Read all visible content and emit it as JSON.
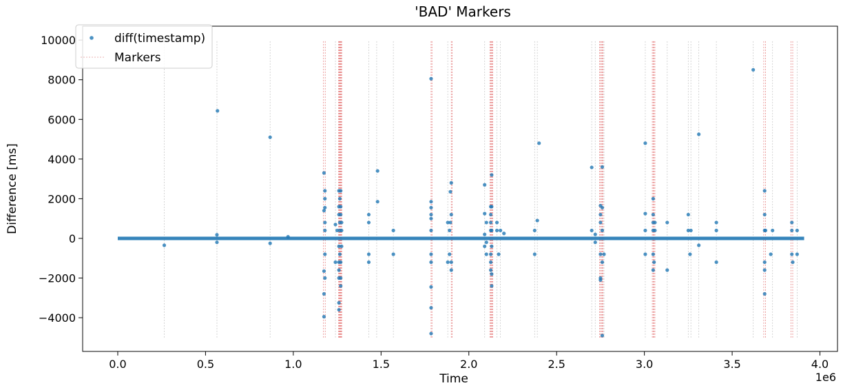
{
  "chart_data": {
    "type": "scatter",
    "title": "'BAD' Markers",
    "xlabel": "Time",
    "ylabel": "Difference [ms]",
    "x_offset_label": "1e6",
    "xlim": [
      -0.2,
      4.1
    ],
    "ylim": [
      -5700,
      10700
    ],
    "x_ticks": [
      0.0,
      0.5,
      1.0,
      1.5,
      2.0,
      2.5,
      3.0,
      3.5,
      4.0
    ],
    "x_tick_labels": [
      "0.0",
      "0.5",
      "1.0",
      "1.5",
      "2.0",
      "2.5",
      "3.0",
      "3.5",
      "4.0"
    ],
    "y_ticks": [
      -4000,
      -2000,
      0,
      2000,
      4000,
      6000,
      8000,
      10000
    ],
    "y_tick_labels": [
      "−4000",
      "−2000",
      "0",
      "2000",
      "4000",
      "6000",
      "8000",
      "10000"
    ],
    "grid": false,
    "legend": {
      "position": "top-left",
      "entries": [
        "diff(timestamp)",
        "Markers"
      ]
    },
    "colors": {
      "points": "#1f77b4",
      "markers_grey": "#c8c8c8",
      "markers_red": "#e06060"
    },
    "series": [
      {
        "name": "diff(timestamp)",
        "baseline_x_range": [
          0.0,
          3.91
        ],
        "baseline_y": 0,
        "points": [
          [
            0.265,
            -350
          ],
          [
            0.565,
            180
          ],
          [
            0.565,
            -200
          ],
          [
            0.568,
            6430
          ],
          [
            0.868,
            5100
          ],
          [
            0.868,
            -250
          ],
          [
            0.97,
            80
          ],
          [
            1.175,
            3300
          ],
          [
            1.175,
            -3950
          ],
          [
            1.175,
            1400
          ],
          [
            1.175,
            -1650
          ],
          [
            1.175,
            -2800
          ],
          [
            1.18,
            1550
          ],
          [
            1.18,
            2000
          ],
          [
            1.18,
            2400
          ],
          [
            1.18,
            800
          ],
          [
            1.18,
            400
          ],
          [
            1.18,
            -2000
          ],
          [
            1.18,
            -800
          ],
          [
            1.24,
            700
          ],
          [
            1.24,
            -1200
          ],
          [
            1.25,
            400
          ],
          [
            1.26,
            2400
          ],
          [
            1.26,
            1600
          ],
          [
            1.26,
            1200
          ],
          [
            1.26,
            -3250
          ],
          [
            1.26,
            -3600
          ],
          [
            1.26,
            -1600
          ],
          [
            1.26,
            -2000
          ],
          [
            1.26,
            -1200
          ],
          [
            1.26,
            -400
          ],
          [
            1.265,
            800
          ],
          [
            1.265,
            400
          ],
          [
            1.265,
            2000
          ],
          [
            1.265,
            -800
          ],
          [
            1.27,
            2400
          ],
          [
            1.27,
            1600
          ],
          [
            1.27,
            -2000
          ],
          [
            1.27,
            1200
          ],
          [
            1.27,
            -2400
          ],
          [
            1.27,
            -1200
          ],
          [
            1.275,
            800
          ],
          [
            1.275,
            400
          ],
          [
            1.275,
            -400
          ],
          [
            1.43,
            1200
          ],
          [
            1.43,
            800
          ],
          [
            1.43,
            -800
          ],
          [
            1.43,
            -1200
          ],
          [
            1.48,
            3400
          ],
          [
            1.48,
            1850
          ],
          [
            1.57,
            400
          ],
          [
            1.57,
            -800
          ],
          [
            1.785,
            8050
          ],
          [
            1.785,
            1200
          ],
          [
            1.785,
            1550
          ],
          [
            1.785,
            1850
          ],
          [
            1.785,
            1000
          ],
          [
            1.785,
            -3500
          ],
          [
            1.785,
            -4800
          ],
          [
            1.785,
            -2450
          ],
          [
            1.785,
            -1200
          ],
          [
            1.785,
            400
          ],
          [
            1.785,
            -800
          ],
          [
            1.88,
            800
          ],
          [
            1.88,
            -1200
          ],
          [
            1.89,
            400
          ],
          [
            1.89,
            -800
          ],
          [
            1.895,
            800
          ],
          [
            1.895,
            2350
          ],
          [
            1.9,
            2800
          ],
          [
            1.9,
            1200
          ],
          [
            1.9,
            -1600
          ],
          [
            1.9,
            -1200
          ],
          [
            2.09,
            2700
          ],
          [
            2.09,
            1250
          ],
          [
            2.09,
            200
          ],
          [
            2.09,
            -400
          ],
          [
            2.1,
            800
          ],
          [
            2.1,
            -800
          ],
          [
            2.1,
            -200
          ],
          [
            2.125,
            1600
          ],
          [
            2.125,
            1200
          ],
          [
            2.125,
            800
          ],
          [
            2.125,
            400
          ],
          [
            2.125,
            -1600
          ],
          [
            2.125,
            -1200
          ],
          [
            2.125,
            -800
          ],
          [
            2.13,
            3200
          ],
          [
            2.13,
            1600
          ],
          [
            2.13,
            -2400
          ],
          [
            2.13,
            -1800
          ],
          [
            2.13,
            400
          ],
          [
            2.13,
            -400
          ],
          [
            2.16,
            800
          ],
          [
            2.16,
            400
          ],
          [
            2.17,
            -800
          ],
          [
            2.18,
            400
          ],
          [
            2.2,
            250
          ],
          [
            2.375,
            400
          ],
          [
            2.375,
            -800
          ],
          [
            2.39,
            900
          ],
          [
            2.4,
            4800
          ],
          [
            2.7,
            3580
          ],
          [
            2.7,
            400
          ],
          [
            2.72,
            200
          ],
          [
            2.72,
            -200
          ],
          [
            2.75,
            1650
          ],
          [
            2.75,
            1200
          ],
          [
            2.75,
            800
          ],
          [
            2.75,
            -800
          ],
          [
            2.75,
            -2000
          ],
          [
            2.75,
            -2100
          ],
          [
            2.76,
            3600
          ],
          [
            2.76,
            1550
          ],
          [
            2.76,
            -4900
          ],
          [
            2.76,
            -1200
          ],
          [
            2.76,
            400
          ],
          [
            2.77,
            -800
          ],
          [
            3.005,
            4800
          ],
          [
            3.005,
            1250
          ],
          [
            3.005,
            400
          ],
          [
            3.005,
            -800
          ],
          [
            3.05,
            2000
          ],
          [
            3.05,
            1200
          ],
          [
            3.05,
            800
          ],
          [
            3.05,
            400
          ],
          [
            3.05,
            -800
          ],
          [
            3.05,
            -1600
          ],
          [
            3.055,
            -1200
          ],
          [
            3.06,
            400
          ],
          [
            3.06,
            800
          ],
          [
            3.13,
            800
          ],
          [
            3.13,
            -1600
          ],
          [
            3.25,
            1200
          ],
          [
            3.25,
            400
          ],
          [
            3.26,
            -800
          ],
          [
            3.265,
            400
          ],
          [
            3.31,
            5250
          ],
          [
            3.31,
            -350
          ],
          [
            3.41,
            800
          ],
          [
            3.41,
            400
          ],
          [
            3.41,
            -1200
          ],
          [
            3.62,
            8500
          ],
          [
            3.685,
            2400
          ],
          [
            3.685,
            1200
          ],
          [
            3.685,
            400
          ],
          [
            3.685,
            -1200
          ],
          [
            3.685,
            -2800
          ],
          [
            3.685,
            -1600
          ],
          [
            3.69,
            400
          ],
          [
            3.72,
            -800
          ],
          [
            3.73,
            400
          ],
          [
            3.84,
            800
          ],
          [
            3.84,
            400
          ],
          [
            3.84,
            -800
          ],
          [
            3.845,
            -1200
          ],
          [
            3.87,
            400
          ],
          [
            3.87,
            -800
          ]
        ]
      },
      {
        "name": "Markers",
        "y_range": [
          -5000,
          10000
        ],
        "grey_x": [
          0.265,
          0.565,
          0.868,
          1.24,
          1.43,
          1.475,
          1.57,
          1.88,
          2.09,
          2.16,
          2.18,
          2.375,
          2.39,
          2.7,
          2.72,
          2.77,
          3.005,
          3.13,
          3.25,
          3.265,
          3.31,
          3.41,
          3.62,
          3.73,
          3.87
        ],
        "red_x": [
          1.172,
          1.182,
          1.258,
          1.261,
          1.264,
          1.267,
          1.27,
          1.273,
          1.276,
          1.785,
          1.79,
          1.9,
          1.905,
          2.12,
          2.124,
          2.128,
          2.132,
          2.136,
          2.745,
          2.75,
          2.755,
          2.76,
          2.765,
          3.045,
          3.05,
          3.055,
          3.06,
          3.68,
          3.69,
          3.835,
          3.845
        ]
      }
    ]
  }
}
